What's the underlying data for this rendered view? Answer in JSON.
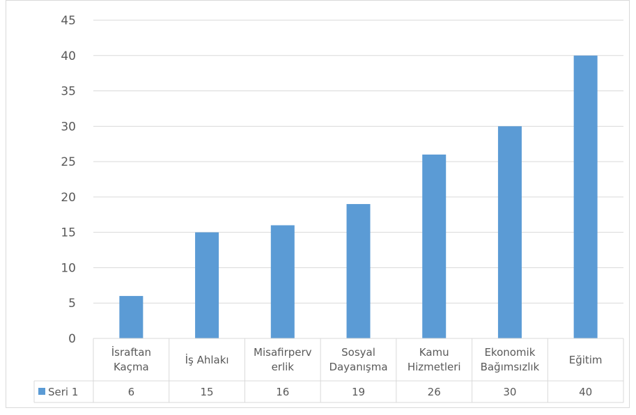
{
  "chart_data": {
    "type": "bar",
    "categories": [
      [
        "İsraftan",
        "Kaçma"
      ],
      [
        "İş Ahlakı"
      ],
      [
        "Misafirperv",
        "erlik"
      ],
      [
        "Sosyal",
        "Dayanışma"
      ],
      [
        "Kamu",
        "Hizmetleri"
      ],
      [
        "Ekonomik",
        "Bağımsızlık"
      ],
      [
        "Eğitim"
      ]
    ],
    "series": [
      {
        "name": "Seri 1",
        "values": [
          6,
          15,
          16,
          19,
          26,
          30,
          40
        ],
        "color": "#5b9bd5"
      }
    ],
    "ylim": [
      0,
      45
    ],
    "ytick_step": 5,
    "yticks": [
      "0",
      "5",
      "10",
      "15",
      "20",
      "25",
      "30",
      "35",
      "40",
      "45"
    ],
    "grid": true,
    "data_table": true,
    "legend": "data-table"
  }
}
